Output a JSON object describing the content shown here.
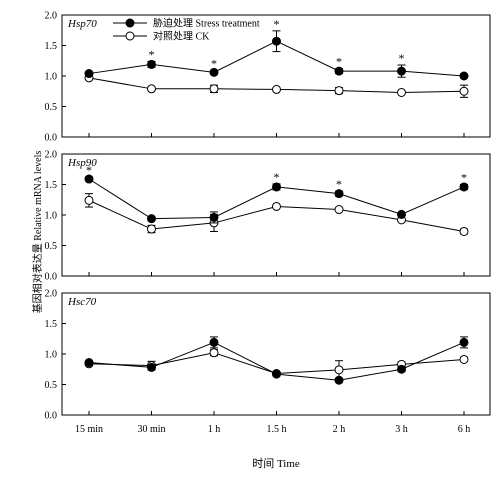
{
  "chart_data": {
    "type": "line",
    "categories": [
      "15 min",
      "30 min",
      "1 h",
      "1.5 h",
      "2 h",
      "3 h",
      "6 h"
    ],
    "xlabel": "时间 Time",
    "ylabel": "基因相对表达量 Relative mRNA levels",
    "ylim": [
      0,
      2.0
    ],
    "yticks": [
      "0.0",
      "0.5",
      "1.0",
      "1.5",
      "2.0"
    ],
    "ytick_values": [
      0,
      0.5,
      1.0,
      1.5,
      2.0
    ],
    "legend": {
      "placement": "top-left of first panel",
      "entries": [
        {
          "label": "胁迫处理 Stress treatment",
          "marker": "filled-circle",
          "color": "#000000"
        },
        {
          "label": "对照处理 CK",
          "marker": "open-circle",
          "color": "#000000"
        }
      ]
    },
    "panels": [
      {
        "gene": "Hsp70",
        "series": [
          {
            "name": "胁迫处理 Stress treatment",
            "values": [
              1.04,
              1.19,
              1.06,
              1.57,
              1.08,
              1.08,
              1.0
            ],
            "errors": [
              0.02,
              0.05,
              0.03,
              0.17,
              0.04,
              0.1,
              0.03
            ]
          },
          {
            "name": "对照处理 CK",
            "values": [
              0.97,
              0.79,
              0.79,
              0.78,
              0.76,
              0.73,
              0.75
            ],
            "errors": [
              0.03,
              0.03,
              0.06,
              0.02,
              0.05,
              0.02,
              0.1
            ]
          }
        ],
        "significant": [
          "30 min",
          "1 h",
          "1.5 h",
          "2 h",
          "3 h"
        ]
      },
      {
        "gene": "Hsp90",
        "series": [
          {
            "name": "胁迫处理 Stress treatment",
            "values": [
              1.59,
              0.94,
              0.96,
              1.46,
              1.35,
              1.01,
              1.46
            ],
            "errors": [
              0.03,
              0.03,
              0.09,
              0.05,
              0.04,
              0.02,
              0.04
            ]
          },
          {
            "name": "对照处理 CK",
            "values": [
              1.24,
              0.77,
              0.87,
              1.14,
              1.09,
              0.92,
              0.73
            ],
            "errors": [
              0.11,
              0.06,
              0.14,
              0.02,
              0.02,
              0.02,
              0.04
            ]
          }
        ],
        "significant": [
          "15 min",
          "1.5 h",
          "2 h",
          "6 h"
        ]
      },
      {
        "gene": "Hsc70",
        "series": [
          {
            "name": "胁迫处理 Stress treatment",
            "values": [
              0.86,
              0.78,
              1.19,
              0.67,
              0.57,
              0.75,
              1.19
            ],
            "errors": [
              0.02,
              0.04,
              0.09,
              0.03,
              0.02,
              0.04,
              0.09
            ]
          },
          {
            "name": "对照处理 CK",
            "values": [
              0.84,
              0.81,
              1.02,
              0.68,
              0.74,
              0.83,
              0.91
            ],
            "errors": [
              0.03,
              0.07,
              0.05,
              0.02,
              0.15,
              0.04,
              0.03
            ]
          }
        ],
        "significant": []
      }
    ],
    "grid": false
  }
}
